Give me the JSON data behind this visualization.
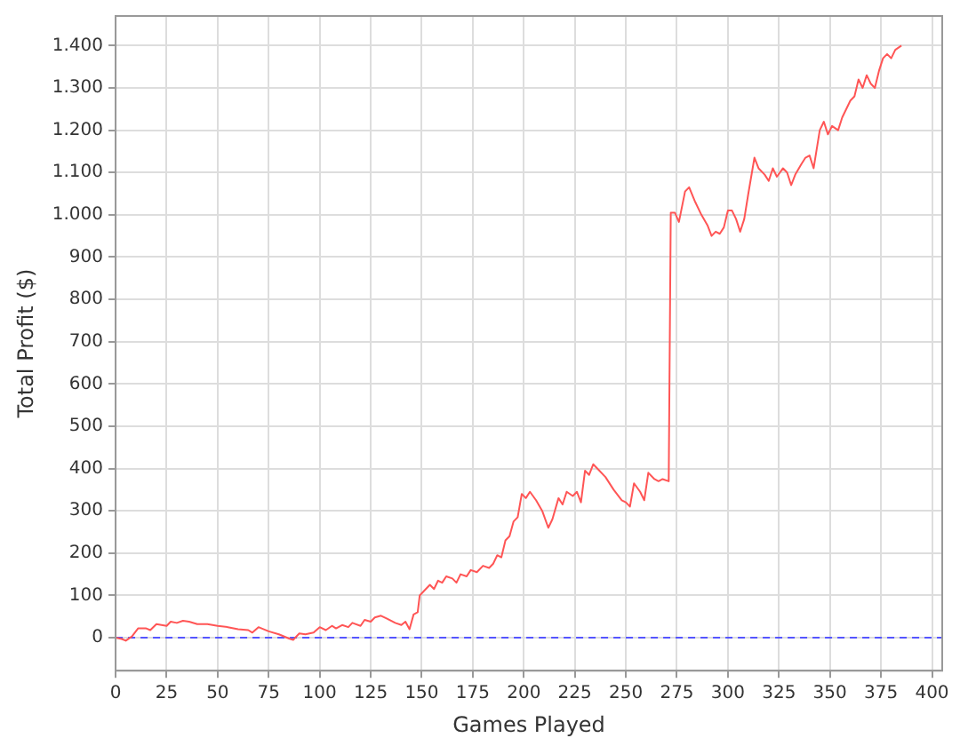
{
  "chart_data": {
    "type": "line",
    "xlabel": "Games Played",
    "ylabel": "Total Profit ($)",
    "xlim": [
      0,
      405
    ],
    "xticks": [
      0,
      25,
      50,
      75,
      100,
      125,
      150,
      175,
      200,
      225,
      250,
      275,
      300,
      325,
      350,
      375,
      400
    ],
    "ylim": [
      -78,
      1470
    ],
    "yticks": [
      0,
      100,
      200,
      300,
      400,
      500,
      600,
      700,
      800,
      900,
      {
        "value": 1000,
        "label": "1.000"
      },
      {
        "value": 1100,
        "label": "1.100"
      },
      {
        "value": 1200,
        "label": "1.200"
      },
      {
        "value": 1300,
        "label": "1.300"
      },
      {
        "value": 1400,
        "label": "1.400"
      }
    ],
    "grid": true,
    "legend": false,
    "marker": "none",
    "line_style": "solid",
    "ref_lines": [
      {
        "axis": "y",
        "value": 0,
        "color": "#5555ff",
        "line_style": "dashed"
      }
    ],
    "series": [
      {
        "color": "#ff5555",
        "x": [
          0,
          3,
          5,
          8,
          11,
          15,
          17,
          20,
          25,
          27,
          30,
          33,
          36,
          40,
          45,
          50,
          55,
          60,
          65,
          67,
          70,
          75,
          80,
          85,
          87,
          90,
          93,
          97,
          100,
          103,
          106,
          108,
          111,
          114,
          116,
          120,
          122,
          125,
          127,
          130,
          133,
          137,
          140,
          142,
          144,
          146,
          148,
          149,
          152,
          154,
          156,
          158,
          160,
          162,
          165,
          167,
          169,
          172,
          174,
          177,
          180,
          183,
          185,
          187,
          189,
          191,
          193,
          195,
          197,
          199,
          201,
          203,
          206,
          209,
          212,
          214,
          217,
          219,
          221,
          224,
          226,
          228,
          230,
          232,
          234,
          236,
          240,
          244,
          248,
          250,
          252,
          254,
          257,
          259,
          261,
          264,
          266,
          268,
          271,
          272,
          274,
          276,
          279,
          281,
          284,
          287,
          290,
          292,
          294,
          296,
          298,
          300,
          302,
          304,
          306,
          308,
          310,
          313,
          315,
          318,
          320,
          322,
          324,
          327,
          329,
          331,
          333,
          336,
          338,
          340,
          342,
          345,
          347,
          349,
          351,
          354,
          356,
          358,
          360,
          362,
          364,
          366,
          368,
          370,
          372,
          374,
          376,
          378,
          380,
          382,
          385
        ],
        "values": [
          0,
          -3,
          -7,
          3,
          22,
          22,
          18,
          32,
          28,
          38,
          35,
          40,
          38,
          32,
          32,
          28,
          25,
          20,
          18,
          12,
          25,
          15,
          8,
          -2,
          -5,
          10,
          8,
          12,
          25,
          18,
          28,
          22,
          30,
          25,
          35,
          28,
          42,
          38,
          48,
          52,
          45,
          35,
          30,
          38,
          20,
          55,
          60,
          100,
          115,
          125,
          115,
          135,
          130,
          145,
          140,
          130,
          150,
          145,
          160,
          155,
          170,
          165,
          175,
          195,
          190,
          230,
          240,
          275,
          285,
          340,
          330,
          345,
          325,
          300,
          260,
          280,
          330,
          315,
          345,
          335,
          345,
          320,
          395,
          385,
          410,
          400,
          380,
          350,
          325,
          320,
          310,
          365,
          345,
          325,
          390,
          375,
          370,
          375,
          370,
          1005,
          1005,
          983,
          1055,
          1065,
          1030,
          1000,
          975,
          950,
          960,
          955,
          970,
          1010,
          1010,
          990,
          960,
          990,
          1050,
          1135,
          1110,
          1095,
          1080,
          1110,
          1090,
          1110,
          1100,
          1070,
          1095,
          1120,
          1135,
          1140,
          1110,
          1200,
          1220,
          1190,
          1210,
          1200,
          1230,
          1250,
          1270,
          1280,
          1320,
          1300,
          1330,
          1310,
          1300,
          1340,
          1370,
          1380,
          1370,
          1390,
          1400
        ]
      }
    ]
  }
}
